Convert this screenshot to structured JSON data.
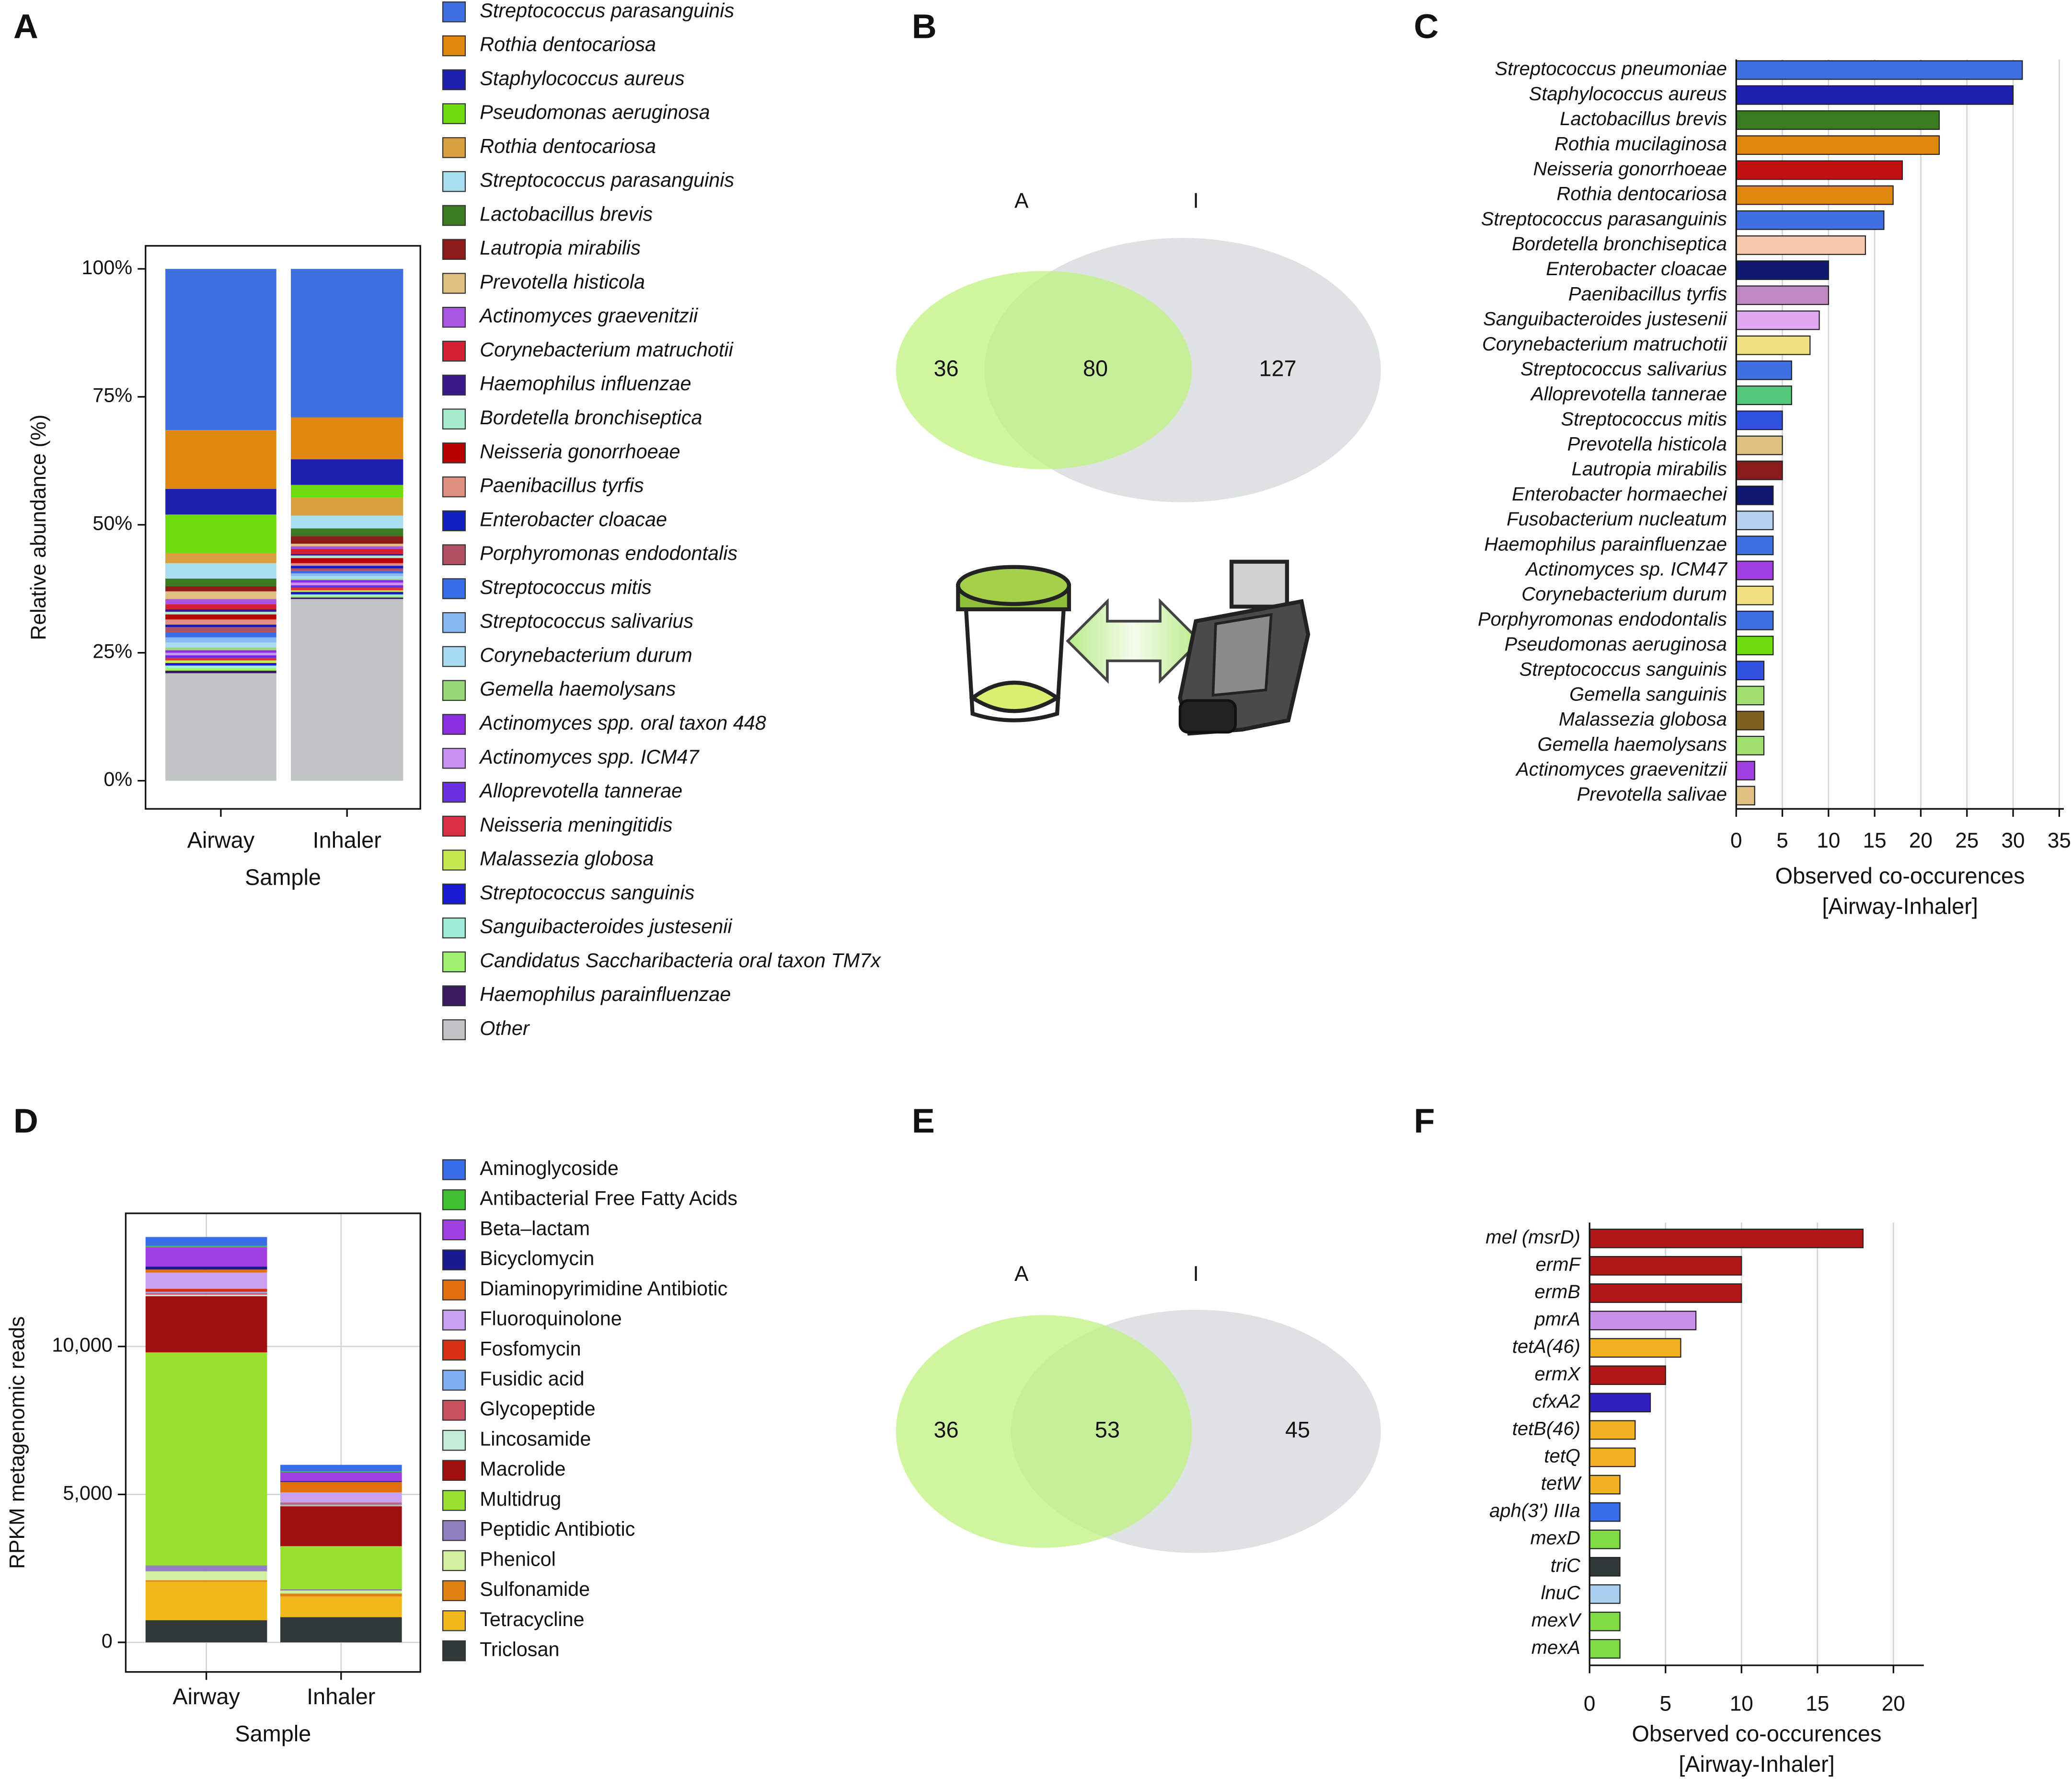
{
  "chart_data": [
    {
      "panel": "A",
      "type": "bar",
      "stacked": true,
      "categories": [
        "Airway",
        "Inhaler"
      ],
      "xlabel": "Sample",
      "ylabel": "Relative abundance (%)",
      "ylim": [
        -5.5,
        104.5
      ],
      "yticks": [
        {
          "value": 0,
          "label": "0%"
        },
        {
          "value": 25,
          "label": "25%"
        },
        {
          "value": 50,
          "label": "50%"
        },
        {
          "value": 75,
          "label": "75%"
        },
        {
          "value": 100,
          "label": "100%"
        }
      ],
      "grid": false,
      "legend": "right",
      "italic_legend": true,
      "series": [
        {
          "name": "Streptococcus parasanguinis",
          "color": "#3f6fe0",
          "values": [
            31.5,
            29
          ]
        },
        {
          "name": "Rothia dentocariosa",
          "color": "#e0870f",
          "values": [
            11.5,
            8.2
          ]
        },
        {
          "name": "Staphylococcus aureus",
          "color": "#2020b0",
          "values": [
            5,
            5
          ]
        },
        {
          "name": "Pseudomonas aeruginosa",
          "color": "#6fdc10",
          "values": [
            7.5,
            2.5
          ]
        },
        {
          "name": "Rothia dentocariosa",
          "color": "#d9a040",
          "values": [
            2,
            3.5
          ]
        },
        {
          "name": "Streptococcus parasanguinis",
          "color": "#a8def0",
          "values": [
            3,
            2.5
          ]
        },
        {
          "name": "Lactobacillus brevis",
          "color": "#3a7a20",
          "values": [
            1.5,
            1.5
          ]
        },
        {
          "name": "Lautropia mirabilis",
          "color": "#8b1a1a",
          "values": [
            1,
            1.5
          ]
        },
        {
          "name": "Prevotella histicola",
          "color": "#e0c080",
          "values": [
            1.5,
            0.5
          ]
        },
        {
          "name": "Actinomyces graevenitzii",
          "color": "#a855e0",
          "values": [
            1,
            0.5
          ]
        },
        {
          "name": "Corynebacterium matruchotii",
          "color": "#d42030",
          "values": [
            1,
            1
          ]
        },
        {
          "name": "Haemophilus influenzae",
          "color": "#3a1a8a",
          "values": [
            0.5,
            0.3
          ]
        },
        {
          "name": "Bordetella bronchiseptica",
          "color": "#a8ecd0",
          "values": [
            0.5,
            0.5
          ]
        },
        {
          "name": "Neisseria gonorrhoeae",
          "color": "#b80000",
          "values": [
            1,
            1
          ]
        },
        {
          "name": "Paenibacillus tyrfis",
          "color": "#e09080",
          "values": [
            1,
            0.5
          ]
        },
        {
          "name": "Enterobacter cloacae",
          "color": "#1020c0",
          "values": [
            0.5,
            0.5
          ]
        },
        {
          "name": "Porphyromonas endodontalis",
          "color": "#b05060",
          "values": [
            1,
            0.5
          ]
        },
        {
          "name": "Streptococcus mitis",
          "color": "#3a6ee8",
          "values": [
            1,
            0.5
          ]
        },
        {
          "name": "Streptococcus salivarius",
          "color": "#88b8f0",
          "values": [
            1,
            0.5
          ]
        },
        {
          "name": "Corynebacterium durum",
          "color": "#a8dcf0",
          "values": [
            1,
            0.5
          ]
        },
        {
          "name": "Gemella haemolysans",
          "color": "#98d878",
          "values": [
            0.5,
            0.3
          ]
        },
        {
          "name": "Actinomyces spp. oral taxon 448",
          "color": "#8a30e0",
          "values": [
            0.5,
            0.5
          ]
        },
        {
          "name": "Actinomyces spp. ICM47",
          "color": "#c890f0",
          "values": [
            0.5,
            0.5
          ]
        },
        {
          "name": "Alloprevotella tannerae",
          "color": "#6a30e0",
          "values": [
            0.5,
            0.5
          ]
        },
        {
          "name": "Neisseria meningitidis",
          "color": "#d83040",
          "values": [
            0.5,
            0.5
          ]
        },
        {
          "name": "Malassezia globosa",
          "color": "#c8e850",
          "values": [
            0.5,
            0.3
          ]
        },
        {
          "name": "Streptococcus sanguinis",
          "color": "#1a1ad0",
          "values": [
            0.5,
            0.5
          ]
        },
        {
          "name": "Sanguibacteroides justesenii",
          "color": "#a0ecd8",
          "values": [
            0.5,
            0.3
          ]
        },
        {
          "name": "Candidatus Saccharibacteria oral taxon TM7x",
          "color": "#a0f070",
          "values": [
            0.5,
            0.3
          ]
        },
        {
          "name": "Haemophilus parainfluenzae",
          "color": "#3a1a60",
          "values": [
            0.5,
            0.3
          ]
        },
        {
          "name": "Other",
          "color": "#c0c4c4",
          "values": [
            21,
            35.5
          ]
        }
      ]
    },
    {
      "panel": "B",
      "type": "venn",
      "sets": [
        {
          "name": "A",
          "color": "#bff27f"
        },
        {
          "name": "I",
          "color": "#dfe2e2"
        }
      ],
      "values": [
        36,
        80,
        127
      ]
    },
    {
      "panel": "C",
      "type": "bar",
      "orientation": "horizontal",
      "italic_categories": true,
      "grid": true,
      "xlabel": [
        "Observed co-occurences",
        "[Airway-Inhaler]"
      ],
      "xlim": [
        0,
        35.5
      ],
      "xticks": [
        0,
        5,
        10,
        15,
        20,
        25,
        30,
        35
      ],
      "categories": [
        "Streptococcus pneumoniae",
        "Staphylococcus aureus",
        "Lactobacillus brevis",
        "Rothia mucilaginosa",
        "Neisseria gonorrhoeae",
        "Rothia dentocariosa",
        "Streptococcus parasanguinis",
        "Bordetella bronchiseptica",
        "Enterobacter cloacae",
        "Paenibacillus tyrfis",
        "Sanguibacteroides justesenii",
        "Corynebacterium matruchotii",
        "Streptococcus salivarius",
        "Alloprevotella tannerae",
        "Streptococcus mitis",
        "Prevotella histicola",
        "Lautropia mirabilis",
        "Enterobacter hormaechei",
        "Fusobacterium nucleatum",
        "Haemophilus parainfluenzae",
        "Actinomyces sp. ICM47",
        "Corynebacterium durum",
        "Porphyromonas endodontalis",
        "Pseudomonas aeruginosa",
        "Streptococcus sanguinis",
        "Gemella sanguinis",
        "Malassezia globosa",
        "Gemella haemolysans",
        "Actinomyces graevenitzii",
        "Prevotella salivae"
      ],
      "values": [
        31,
        30,
        22,
        22,
        18,
        17,
        16,
        14,
        10,
        10,
        9,
        8,
        6,
        6,
        5,
        5,
        5,
        4,
        4,
        4,
        4,
        4,
        4,
        4,
        3,
        3,
        3,
        3,
        2,
        2
      ],
      "colors": [
        "#3f6fe0",
        "#2020b0",
        "#3a7a20",
        "#e0870f",
        "#c01010",
        "#e0870f",
        "#3f6fe0",
        "#f4c8a8",
        "#101870",
        "#c088c0",
        "#e0a8f0",
        "#f0e080",
        "#3f6fe0",
        "#50c878",
        "#3050e0",
        "#e0c080",
        "#8b1a1a",
        "#101870",
        "#b8d0f0",
        "#3f6fe0",
        "#a040e0",
        "#f0e080",
        "#3f6fe0",
        "#6fdc10",
        "#3050e0",
        "#a0e070",
        "#806020",
        "#a0e070",
        "#a040e0",
        "#e0c080"
      ]
    },
    {
      "panel": "D",
      "type": "bar",
      "stacked": true,
      "categories": [
        "Airway",
        "Inhaler"
      ],
      "xlabel": "Sample",
      "ylabel": "RPKM metagenomic reads",
      "ylim": [
        -1000,
        14500
      ],
      "yticks": [
        0,
        {
          "value": 5000,
          "label": "5,000"
        },
        {
          "value": 10000,
          "label": "10,000"
        }
      ],
      "grid": true,
      "legend": "right",
      "italic_legend": false,
      "series": [
        {
          "name": "Aminoglycoside",
          "color": "#3a6ee8",
          "values": [
            300,
            220
          ]
        },
        {
          "name": "Antibacterial Free Fatty Acids",
          "color": "#40c030",
          "values": [
            50,
            30
          ]
        },
        {
          "name": "Beta–lactam",
          "color": "#a040e0",
          "values": [
            650,
            300
          ]
        },
        {
          "name": "Bicyclomycin",
          "color": "#1a1a90",
          "values": [
            100,
            30
          ]
        },
        {
          "name": "Diaminopyrimidine Antibiotic",
          "color": "#e07010",
          "values": [
            100,
            350
          ]
        },
        {
          "name": "Fluoroquinolone",
          "color": "#c8a0f0",
          "values": [
            550,
            350
          ]
        },
        {
          "name": "Fosfomycin",
          "color": "#d83010",
          "values": [
            100,
            30
          ]
        },
        {
          "name": "Fusidic acid",
          "color": "#80b0f0",
          "values": [
            50,
            30
          ]
        },
        {
          "name": "Glycopeptide",
          "color": "#c85060",
          "values": [
            50,
            30
          ]
        },
        {
          "name": "Lincosamide",
          "color": "#c0ecd8",
          "values": [
            50,
            30
          ]
        },
        {
          "name": "Macrolide",
          "color": "#a01010",
          "values": [
            1900,
            1350
          ]
        },
        {
          "name": "Multidrug",
          "color": "#98e030",
          "values": [
            7200,
            1450
          ]
        },
        {
          "name": "Peptidic Antibiotic",
          "color": "#9080c0",
          "values": [
            200,
            50
          ]
        },
        {
          "name": "Phenicol",
          "color": "#d0f0a0",
          "values": [
            300,
            100
          ]
        },
        {
          "name": "Sulfonamide",
          "color": "#e08010",
          "values": [
            50,
            100
          ]
        },
        {
          "name": "Tetracycline",
          "color": "#f0b818",
          "values": [
            1300,
            700
          ]
        },
        {
          "name": "Triclosan",
          "color": "#303838",
          "values": [
            750,
            850
          ]
        }
      ]
    },
    {
      "panel": "E",
      "type": "venn",
      "sets": [
        {
          "name": "A",
          "color": "#bff27f"
        },
        {
          "name": "I",
          "color": "#dfe2e2"
        }
      ],
      "values": [
        36,
        53,
        45
      ]
    },
    {
      "panel": "F",
      "type": "bar",
      "orientation": "horizontal",
      "italic_categories": true,
      "grid": true,
      "xlabel": [
        "Observed co-occurences",
        "[Airway-Inhaler]"
      ],
      "xlim": [
        0,
        22
      ],
      "xticks": [
        0,
        5,
        10,
        15,
        20
      ],
      "categories": [
        "mel (msrD)",
        "ermF",
        "ermB",
        "pmrA",
        "tetA(46)",
        "ermX",
        "cfxA2",
        "tetB(46)",
        "tetQ",
        "tetW",
        "aph(3') IIIa",
        "mexD",
        "triC",
        "lnuC",
        "mexV",
        "mexA"
      ],
      "values": [
        18,
        10,
        10,
        7,
        6,
        5,
        4,
        3,
        3,
        2,
        2,
        2,
        2,
        2,
        2,
        2
      ],
      "colors": [
        "#b01818",
        "#b01818",
        "#b01818",
        "#c890e8",
        "#f0b020",
        "#b01818",
        "#3020c0",
        "#f0b020",
        "#f0b020",
        "#f0b020",
        "#3a6ee8",
        "#80dc40",
        "#303838",
        "#a8d0f0",
        "#80dc40",
        "#80dc40"
      ]
    }
  ]
}
